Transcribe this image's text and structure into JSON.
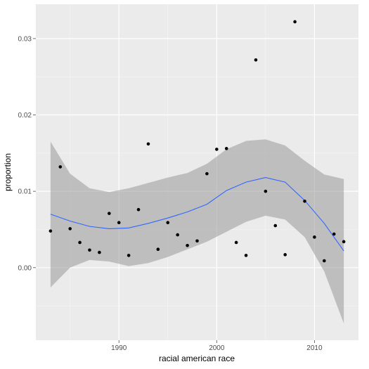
{
  "chart_data": {
    "type": "scatter",
    "title": "",
    "xlabel": "racial american race",
    "ylabel": "proportion",
    "xlim": [
      1981.5,
      2014.5
    ],
    "ylim": [
      -0.0095,
      0.0345
    ],
    "x_ticks": [
      1990,
      2000,
      2010
    ],
    "x_tick_labels": [
      "1990",
      "2000",
      "2010"
    ],
    "y_ticks": [
      0.0,
      0.01,
      0.02,
      0.03
    ],
    "y_tick_labels": [
      "0.00",
      "0.01",
      "0.02",
      "0.03"
    ],
    "grid": true,
    "points": [
      {
        "x": 1983,
        "y": 0.0048
      },
      {
        "x": 1984,
        "y": 0.0132
      },
      {
        "x": 1985,
        "y": 0.0051
      },
      {
        "x": 1986,
        "y": 0.0033
      },
      {
        "x": 1987,
        "y": 0.0023
      },
      {
        "x": 1988,
        "y": 0.002
      },
      {
        "x": 1989,
        "y": 0.0071
      },
      {
        "x": 1990,
        "y": 0.0059
      },
      {
        "x": 1991,
        "y": 0.0016
      },
      {
        "x": 1992,
        "y": 0.0076
      },
      {
        "x": 1993,
        "y": 0.0162
      },
      {
        "x": 1994,
        "y": 0.0024
      },
      {
        "x": 1995,
        "y": 0.0059
      },
      {
        "x": 1996,
        "y": 0.0043
      },
      {
        "x": 1997,
        "y": 0.0029
      },
      {
        "x": 1998,
        "y": 0.0035
      },
      {
        "x": 1999,
        "y": 0.0123
      },
      {
        "x": 2000,
        "y": 0.0155
      },
      {
        "x": 2001,
        "y": 0.0156
      },
      {
        "x": 2002,
        "y": 0.0033
      },
      {
        "x": 2003,
        "y": 0.0016
      },
      {
        "x": 2004,
        "y": 0.0272
      },
      {
        "x": 2005,
        "y": 0.01
      },
      {
        "x": 2006,
        "y": 0.0055
      },
      {
        "x": 2007,
        "y": 0.0017
      },
      {
        "x": 2008,
        "y": 0.0322
      },
      {
        "x": 2009,
        "y": 0.0087
      },
      {
        "x": 2010,
        "y": 0.004
      },
      {
        "x": 2011,
        "y": 0.0009
      },
      {
        "x": 2012,
        "y": 0.0044
      },
      {
        "x": 2013,
        "y": 0.0034
      }
    ],
    "smooth": {
      "x": [
        1983,
        1985,
        1987,
        1989,
        1991,
        1993,
        1995,
        1997,
        1999,
        2001,
        2003,
        2005,
        2007,
        2009,
        2011,
        2013
      ],
      "y": [
        0.007,
        0.0061,
        0.0054,
        0.0051,
        0.0052,
        0.0058,
        0.0065,
        0.0073,
        0.0083,
        0.0101,
        0.0112,
        0.0118,
        0.0112,
        0.0088,
        0.0058,
        0.0022
      ],
      "upper": [
        0.0165,
        0.0123,
        0.0104,
        0.0099,
        0.0104,
        0.0111,
        0.0118,
        0.0124,
        0.0136,
        0.0155,
        0.0166,
        0.0168,
        0.016,
        0.014,
        0.0122,
        0.0116
      ],
      "lower": [
        -0.0026,
        0.0,
        0.001,
        0.0008,
        0.0002,
        0.0006,
        0.0014,
        0.0024,
        0.0034,
        0.0047,
        0.006,
        0.0068,
        0.0063,
        0.004,
        -0.0005,
        -0.0073
      ]
    },
    "colors": {
      "panel": "#ebebeb",
      "grid": "#ffffff",
      "band": "#999999",
      "line": "#3366ff",
      "point": "#000000"
    }
  }
}
